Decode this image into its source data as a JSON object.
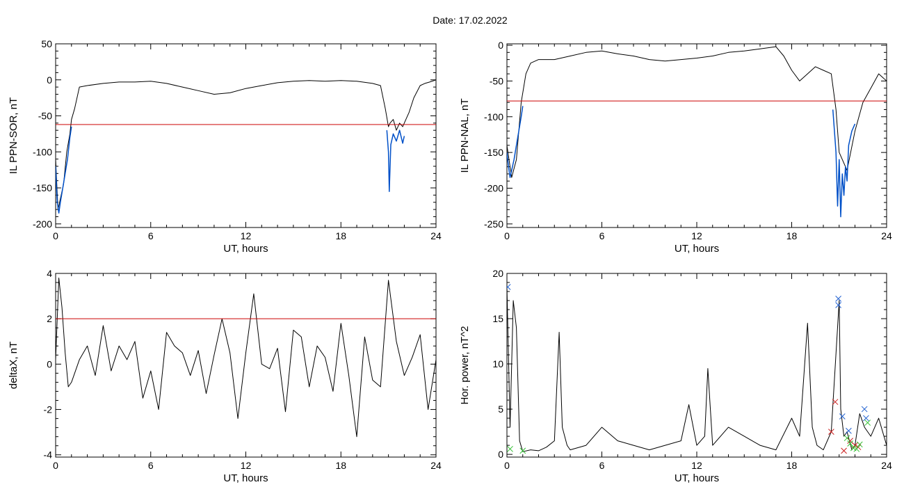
{
  "title": "Date:  17.02.2022",
  "colors": {
    "trace": "#000000",
    "active": "#0050c8",
    "threshold": "#cc0000",
    "marker_blue": "#2060d0",
    "marker_red": "#cc2020",
    "marker_green": "#30c030"
  },
  "chart_data": [
    {
      "type": "line",
      "id": "sor",
      "xlabel": "UT, hours",
      "ylabel": "IL PPN-SOR, nT",
      "xlim": [
        0,
        24
      ],
      "ylim": [
        -205,
        50
      ],
      "xticks": [
        0,
        6,
        12,
        18,
        24
      ],
      "yticks": [
        -200,
        -150,
        -100,
        -50,
        0,
        50
      ],
      "threshold": -62,
      "series": [
        {
          "color": "black",
          "x": [
            0,
            0.15,
            0.3,
            0.5,
            0.7,
            0.9,
            1.0,
            1.2,
            1.5,
            2,
            3,
            4,
            5,
            6,
            7,
            8,
            9,
            10,
            11,
            12,
            13,
            14,
            15,
            16,
            17,
            18,
            19,
            20,
            20.5,
            20.8,
            21.0,
            21.1,
            21.3,
            21.5,
            21.7,
            21.9,
            22.1,
            22.3,
            22.6,
            23,
            23.3,
            23.6,
            24
          ],
          "y": [
            -110,
            -180,
            -165,
            -145,
            -100,
            -75,
            -55,
            -40,
            -10,
            -8,
            -5,
            -3,
            -3,
            -2,
            -5,
            -10,
            -15,
            -20,
            -18,
            -12,
            -8,
            -4,
            -2,
            -1,
            -2,
            -1,
            -2,
            -5,
            -8,
            -40,
            -65,
            -60,
            -55,
            -70,
            -60,
            -65,
            -55,
            -45,
            -25,
            -8,
            -5,
            -3,
            0
          ]
        },
        {
          "color": "blue",
          "x": [
            0,
            0.1,
            0.2,
            0.3,
            0.45,
            0.6,
            0.75,
            0.9,
            1.0
          ],
          "y": [
            -120,
            -170,
            -185,
            -170,
            -150,
            -130,
            -110,
            -80,
            -65
          ]
        },
        {
          "color": "blue",
          "x": [
            20.9,
            21.0,
            21.05,
            21.15,
            21.3,
            21.5,
            21.7,
            21.9,
            22.0
          ],
          "y": [
            -70,
            -100,
            -155,
            -90,
            -75,
            -85,
            -70,
            -88,
            -78
          ]
        }
      ]
    },
    {
      "type": "line",
      "id": "nal",
      "xlabel": "UT, hours",
      "ylabel": "IL PPN-NAL, nT",
      "xlim": [
        0,
        24
      ],
      "ylim": [
        -255,
        2
      ],
      "xticks": [
        0,
        6,
        12,
        18,
        24
      ],
      "yticks": [
        -250,
        -200,
        -150,
        -100,
        -50,
        0
      ],
      "threshold": -78,
      "series": [
        {
          "color": "black",
          "x": [
            0,
            0.3,
            0.6,
            0.9,
            1.2,
            1.5,
            2,
            3,
            4,
            5,
            6,
            7,
            8,
            9,
            10,
            11,
            12,
            13,
            14,
            15,
            16,
            17,
            17.5,
            18,
            18.5,
            19,
            19.5,
            20,
            20.5,
            20.8,
            21.0,
            21.5,
            22,
            22.5,
            23,
            23.5,
            24
          ],
          "y": [
            -140,
            -185,
            -160,
            -80,
            -40,
            -25,
            -20,
            -20,
            -15,
            -10,
            -8,
            -12,
            -15,
            -20,
            -22,
            -20,
            -18,
            -15,
            -10,
            -8,
            -5,
            -2,
            -15,
            -35,
            -50,
            -40,
            -30,
            -35,
            -40,
            -90,
            -150,
            -175,
            -120,
            -80,
            -60,
            -40,
            -50
          ]
        },
        {
          "color": "blue",
          "x": [
            0,
            0.1,
            0.2,
            0.3,
            0.45,
            0.6,
            0.75,
            0.9,
            1.0
          ],
          "y": [
            -150,
            -170,
            -185,
            -175,
            -160,
            -140,
            -120,
            -100,
            -85
          ]
        },
        {
          "color": "blue",
          "x": [
            20.6,
            20.8,
            20.9,
            21.0,
            21.1,
            21.2,
            21.3,
            21.4,
            21.5,
            21.6,
            21.8,
            22.0
          ],
          "y": [
            -90,
            -150,
            -225,
            -160,
            -240,
            -180,
            -210,
            -170,
            -190,
            -140,
            -120,
            -110
          ]
        }
      ]
    },
    {
      "type": "line",
      "id": "deltax",
      "xlabel": "UT, hours",
      "ylabel": "deltaX, nT",
      "xlim": [
        0,
        24
      ],
      "ylim": [
        -4.1,
        4
      ],
      "xticks": [
        0,
        6,
        12,
        18,
        24
      ],
      "yticks": [
        -4,
        -2,
        0,
        2,
        4
      ],
      "threshold": 2.0,
      "series": [
        {
          "color": "black",
          "x": [
            0,
            0.2,
            0.4,
            0.6,
            0.8,
            1.0,
            1.5,
            2,
            2.5,
            3,
            3.5,
            4,
            4.5,
            5,
            5.5,
            6,
            6.5,
            7,
            7.5,
            8,
            8.5,
            9,
            9.5,
            10,
            10.5,
            11,
            11.5,
            12,
            12.5,
            13,
            13.5,
            14,
            14.5,
            15,
            15.5,
            16,
            16.5,
            17,
            17.5,
            18,
            18.5,
            19,
            19.5,
            20,
            20.5,
            21,
            21.5,
            22,
            22.5,
            23,
            23.5,
            24
          ],
          "y": [
            0.2,
            3.8,
            2.5,
            0.5,
            -1.0,
            -0.8,
            0.2,
            0.8,
            -0.5,
            1.7,
            -0.3,
            0.8,
            0.2,
            1.0,
            -1.5,
            -0.3,
            -2.0,
            1.4,
            0.8,
            0.5,
            -0.5,
            0.6,
            -1.3,
            0.4,
            2.0,
            0.5,
            -2.4,
            0.5,
            3.1,
            0.0,
            -0.2,
            0.7,
            -2.1,
            1.5,
            1.2,
            -1.0,
            0.8,
            0.3,
            -1.2,
            1.8,
            -0.5,
            -3.2,
            1.2,
            -0.7,
            -1.0,
            3.7,
            1.0,
            -0.5,
            0.3,
            1.3,
            -2.0,
            0.2
          ]
        }
      ]
    },
    {
      "type": "line",
      "id": "horpower",
      "xlabel": "UT, hours",
      "ylabel": "Hor. power, nT^2",
      "xlim": [
        0,
        24
      ],
      "ylim": [
        -0.3,
        20
      ],
      "xticks": [
        0,
        6,
        12,
        18,
        24
      ],
      "yticks": [
        0,
        5,
        10,
        15,
        20
      ],
      "series": [
        {
          "color": "black",
          "x": [
            0,
            0.2,
            0.4,
            0.6,
            0.8,
            1.0,
            1.5,
            2,
            2.5,
            3,
            3.3,
            3.5,
            3.8,
            4,
            5,
            6,
            7,
            8,
            9,
            10,
            11,
            11.5,
            12,
            12.5,
            12.7,
            13,
            14,
            15,
            16,
            17,
            18,
            18.5,
            19,
            19.3,
            19.6,
            20,
            20.5,
            21.0,
            21.1,
            21.3,
            21.5,
            21.8,
            22,
            22.3,
            22.6,
            23,
            23.5,
            24
          ],
          "y": [
            18.5,
            3.0,
            17.0,
            14.0,
            1.5,
            0.3,
            0.5,
            0.4,
            0.8,
            1.5,
            13.5,
            3.0,
            1.0,
            0.5,
            1.0,
            3.0,
            1.5,
            1.0,
            0.5,
            1.0,
            1.5,
            5.5,
            1.0,
            2.0,
            9.5,
            1.0,
            3.0,
            2.0,
            1.0,
            0.5,
            4.0,
            2.0,
            14.5,
            3.0,
            1.0,
            0.5,
            2.5,
            17.0,
            5.0,
            2.0,
            2.5,
            0.5,
            1.0,
            4.5,
            3.0,
            2.0,
            4.0,
            1.0
          ]
        }
      ],
      "markers": [
        {
          "color": "blue",
          "points": [
            [
              0.05,
              18.5
            ],
            [
              20.95,
              17.2
            ],
            [
              20.95,
              16.5
            ],
            [
              21.2,
              4.2
            ],
            [
              21.6,
              2.6
            ],
            [
              22.6,
              5.0
            ],
            [
              22.7,
              4.0
            ]
          ]
        },
        {
          "color": "red",
          "points": [
            [
              20.5,
              2.5
            ],
            [
              20.75,
              5.8
            ],
            [
              21.3,
              0.4
            ],
            [
              21.7,
              1.5
            ],
            [
              22.0,
              1.0
            ],
            [
              22.2,
              0.8
            ]
          ]
        },
        {
          "color": "green",
          "points": [
            [
              0.2,
              0.6
            ],
            [
              1.0,
              0.4
            ],
            [
              21.5,
              1.8
            ],
            [
              21.7,
              1.2
            ],
            [
              21.9,
              0.7
            ],
            [
              22.1,
              0.6
            ],
            [
              22.3,
              1.1
            ],
            [
              22.8,
              3.5
            ]
          ]
        }
      ]
    }
  ]
}
